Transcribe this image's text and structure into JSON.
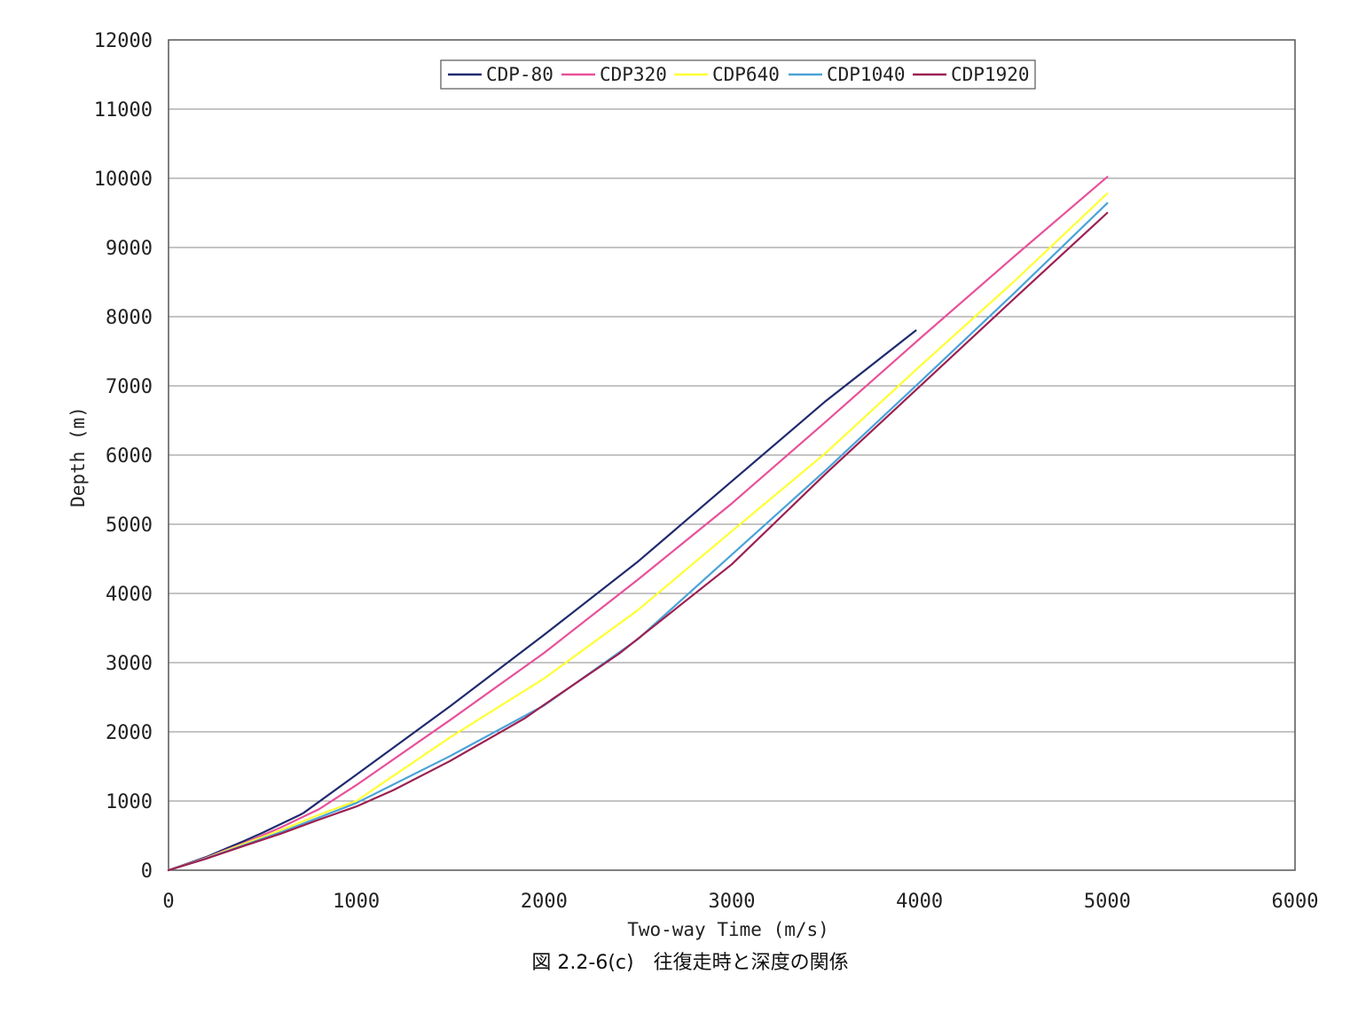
{
  "chart_data": {
    "type": "line",
    "caption": "図 2.2-6(c)　往復走時と深度の関係",
    "xlabel": "Two-way Time (m/s)",
    "ylabel": "Depth (m)",
    "xlim": [
      0,
      6000
    ],
    "ylim": [
      0,
      12000
    ],
    "xticks": [
      "0",
      "1000",
      "2000",
      "3000",
      "4000",
      "5000",
      "6000"
    ],
    "yticks": [
      "0",
      "1000",
      "2000",
      "3000",
      "4000",
      "5000",
      "6000",
      "7000",
      "8000",
      "9000",
      "10000",
      "11000",
      "12000"
    ],
    "grid": "horizontal",
    "legend": "top-center",
    "series": [
      {
        "name": "CDP-80",
        "color": "#1f2a6e",
        "points": [
          [
            0,
            0
          ],
          [
            200,
            190
          ],
          [
            400,
            420
          ],
          [
            500,
            540
          ],
          [
            700,
            800
          ],
          [
            720,
            830
          ],
          [
            1000,
            1380
          ],
          [
            1500,
            2370
          ],
          [
            2000,
            3400
          ],
          [
            2500,
            4460
          ],
          [
            3000,
            5620
          ],
          [
            3500,
            6780
          ],
          [
            3980,
            7800
          ]
        ]
      },
      {
        "name": "CDP320",
        "color": "#e8509a",
        "points": [
          [
            0,
            0
          ],
          [
            200,
            180
          ],
          [
            400,
            390
          ],
          [
            600,
            620
          ],
          [
            800,
            880
          ],
          [
            1000,
            1230
          ],
          [
            1500,
            2170
          ],
          [
            2000,
            3140
          ],
          [
            2500,
            4200
          ],
          [
            3000,
            5300
          ],
          [
            3500,
            6480
          ],
          [
            4000,
            7680
          ],
          [
            4500,
            8860
          ],
          [
            5000,
            10020
          ]
        ]
      },
      {
        "name": "CDP640",
        "color": "#ffff33",
        "points": [
          [
            0,
            0
          ],
          [
            200,
            175
          ],
          [
            400,
            380
          ],
          [
            600,
            580
          ],
          [
            800,
            800
          ],
          [
            1000,
            1000
          ],
          [
            1500,
            1920
          ],
          [
            2000,
            2770
          ],
          [
            2500,
            3760
          ],
          [
            3000,
            4900
          ],
          [
            3500,
            6030
          ],
          [
            4000,
            7280
          ],
          [
            4500,
            8500
          ],
          [
            5000,
            9780
          ]
        ]
      },
      {
        "name": "CDP1040",
        "color": "#4aa3d8",
        "points": [
          [
            0,
            0
          ],
          [
            200,
            170
          ],
          [
            400,
            360
          ],
          [
            600,
            550
          ],
          [
            800,
            760
          ],
          [
            1000,
            970
          ],
          [
            1500,
            1650
          ],
          [
            2000,
            2380
          ],
          [
            2500,
            3340
          ],
          [
            3000,
            4560
          ],
          [
            3500,
            5780
          ],
          [
            4000,
            7050
          ],
          [
            4500,
            8330
          ],
          [
            5000,
            9640
          ]
        ]
      },
      {
        "name": "CDP1920",
        "color": "#9c1f52",
        "points": [
          [
            0,
            0
          ],
          [
            200,
            165
          ],
          [
            400,
            350
          ],
          [
            600,
            530
          ],
          [
            800,
            730
          ],
          [
            1000,
            920
          ],
          [
            1200,
            1160
          ],
          [
            1500,
            1580
          ],
          [
            1900,
            2200
          ],
          [
            2000,
            2390
          ],
          [
            2400,
            3130
          ],
          [
            3000,
            4420
          ],
          [
            3500,
            5730
          ],
          [
            4000,
            6990
          ],
          [
            4500,
            8250
          ],
          [
            5000,
            9500
          ]
        ]
      }
    ]
  }
}
